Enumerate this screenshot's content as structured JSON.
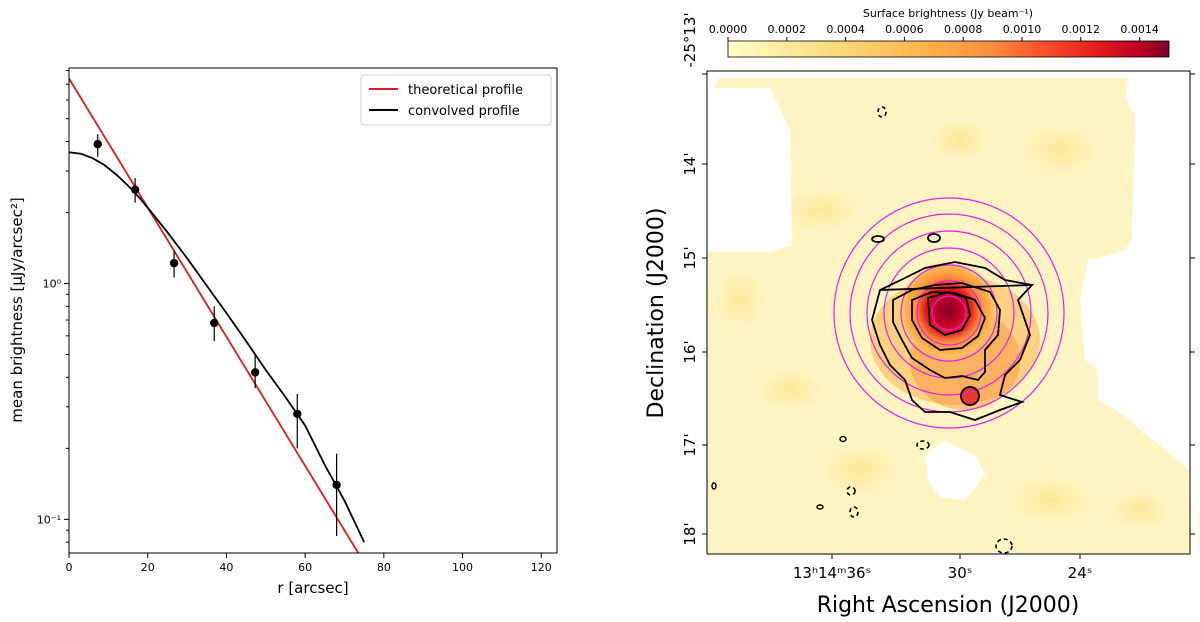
{
  "chart_data": [
    {
      "type": "line",
      "xlabel": "r [arcsec]",
      "ylabel": "mean brightness [μJy/arcsec²]",
      "xlim": [
        0,
        124
      ],
      "ylim": [
        0.072,
        8.2
      ],
      "yscale": "log",
      "x_ticks": [
        0,
        20,
        40,
        60,
        80,
        100,
        120
      ],
      "y_ticks": [
        {
          "value": 1.0,
          "label": "10⁰"
        },
        {
          "value": 0.1,
          "label": "10⁻¹"
        }
      ],
      "legend_position": "top-right",
      "series": [
        {
          "name": "theoretical profile",
          "color": "#e31a1c",
          "x": [
            0,
            73.5
          ],
          "y": [
            7.4,
            0.072
          ]
        },
        {
          "name": "convolved profile",
          "color": "#000000",
          "x": [
            0,
            3,
            6,
            9,
            12,
            15,
            18,
            21,
            25,
            30,
            35,
            40,
            45,
            50,
            55,
            60,
            65,
            70,
            75
          ],
          "y": [
            3.6,
            3.55,
            3.4,
            3.18,
            2.9,
            2.6,
            2.3,
            2.0,
            1.65,
            1.28,
            0.98,
            0.75,
            0.57,
            0.43,
            0.33,
            0.25,
            0.17,
            0.12,
            0.08
          ]
        }
      ],
      "points": [
        {
          "x": 7.3,
          "y": 3.9,
          "yerr_low": 3.45,
          "yerr_high": 4.3
        },
        {
          "x": 16.8,
          "y": 2.5,
          "yerr_low": 2.2,
          "yerr_high": 2.8
        },
        {
          "x": 26.7,
          "y": 1.22,
          "yerr_low": 1.06,
          "yerr_high": 1.38
        },
        {
          "x": 36.9,
          "y": 0.68,
          "yerr_low": 0.57,
          "yerr_high": 0.8
        },
        {
          "x": 47.3,
          "y": 0.42,
          "yerr_low": 0.36,
          "yerr_high": 0.5
        },
        {
          "x": 58.0,
          "y": 0.28,
          "yerr_low": 0.2,
          "yerr_high": 0.34
        },
        {
          "x": 68.0,
          "y": 0.14,
          "yerr_low": 0.085,
          "yerr_high": 0.19
        }
      ]
    },
    {
      "type": "heatmap",
      "xlabel": "Right Ascension (J2000)",
      "ylabel": "Declination (J2000)",
      "x_ticks": [
        "13ʰ14ᵐ36ˢ",
        "30ˢ",
        "24ˢ"
      ],
      "y_ticks": [
        "-25°13'",
        "14'",
        "15'",
        "16'",
        "17'",
        "18'"
      ],
      "colorbar": {
        "label": "Surface brightness (Jy beam⁻¹)",
        "ticks": [
          "0.0000",
          "0.0002",
          "0.0004",
          "0.0006",
          "0.0008",
          "0.0010",
          "0.0012",
          "0.0014"
        ],
        "range": [
          0,
          0.0015
        ],
        "colormap": "YlOrRd",
        "position": "top"
      },
      "annotations": "magenta concentric annuli centered on the source; black brightness contours"
    }
  ]
}
